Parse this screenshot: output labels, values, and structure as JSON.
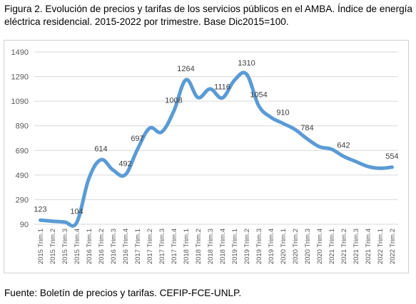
{
  "caption": {
    "line1": "Figura 2. Evolución de precios y tarifas de los servicios públicos en el AMBA. Índice de energía",
    "line2": "eléctrica residencial. 2015-2022 por trimestre. Base Dic2015=100."
  },
  "source": "Fuente: Boletín de precios y tarifas. CEFIP-FCE-UNLP.",
  "colors": {
    "line": "#5b9bd5",
    "grid": "#d9d9d9",
    "text": "#595959"
  },
  "chart_data": {
    "type": "line",
    "title": "",
    "xlabel": "",
    "ylabel": "",
    "ylim": [
      90,
      1490
    ],
    "yticks": [
      90,
      290,
      490,
      690,
      890,
      1090,
      1290,
      1490
    ],
    "grid": true,
    "categories": [
      "2015 Trim.1",
      "2015 Trim.2",
      "2015 Trim.3",
      "2015 Trim.4",
      "2016 Trim.1",
      "2016 Trim.2",
      "2016 Trim.3",
      "2016 Trim.4",
      "2017 Trim.1",
      "2017 Trim.2",
      "2017 Trim.3",
      "2017 Trim.4",
      "2018 Trim.1",
      "2018 Trim.2",
      "2018 Trim.3",
      "2018 Trim.4",
      "2019 Trim.1",
      "2019 Trim.2",
      "2019 Trim.3",
      "2019 Trim.4",
      "2020 Trim.1",
      "2020 Trim.2",
      "2020 Trim.3",
      "2020 Trim.4",
      "2021 Trim.1",
      "2021 Trim.2",
      "2021 Trim.3",
      "2021 Trim.4",
      "2022 Trim.1",
      "2022 Trim.2"
    ],
    "values": [
      123,
      115,
      108,
      104,
      460,
      614,
      530,
      492,
      697,
      870,
      840,
      1008,
      1264,
      1120,
      1190,
      1116,
      1260,
      1310,
      1054,
      960,
      910,
      860,
      784,
      720,
      700,
      642,
      600,
      560,
      545,
      554
    ],
    "labels": [
      {
        "index": 0,
        "text": "123"
      },
      {
        "index": 3,
        "text": "104"
      },
      {
        "index": 5,
        "text": "614"
      },
      {
        "index": 7,
        "text": "492"
      },
      {
        "index": 8,
        "text": "697"
      },
      {
        "index": 11,
        "text": "1008"
      },
      {
        "index": 12,
        "text": "1264"
      },
      {
        "index": 15,
        "text": "1116"
      },
      {
        "index": 17,
        "text": "1310"
      },
      {
        "index": 18,
        "text": "1054"
      },
      {
        "index": 20,
        "text": "910"
      },
      {
        "index": 22,
        "text": "784"
      },
      {
        "index": 25,
        "text": "642"
      },
      {
        "index": 29,
        "text": "554"
      }
    ]
  }
}
